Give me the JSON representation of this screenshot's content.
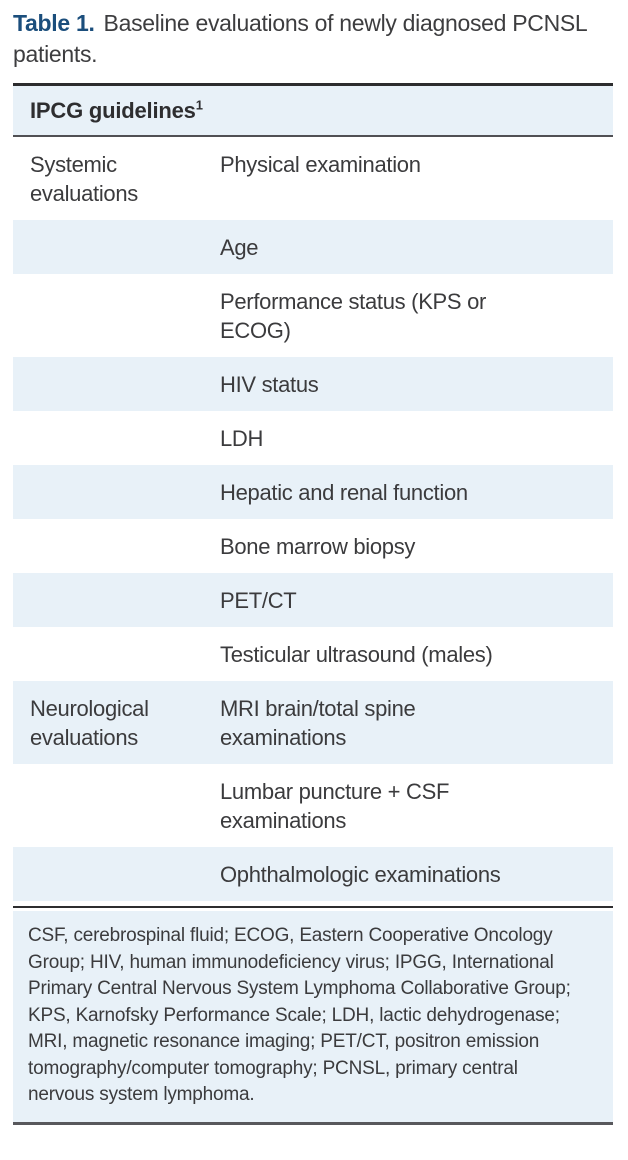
{
  "title": {
    "label": "Table 1.",
    "text": "Baseline evaluations of newly diagnosed PCNSL patients."
  },
  "table": {
    "header": {
      "text": "IPCG guidelines",
      "superscript": "1"
    },
    "columns": [
      "category",
      "evaluation"
    ],
    "rows": [
      {
        "category": "Systemic evaluations",
        "item": "Physical examination",
        "shaded": false
      },
      {
        "category": "",
        "item": "Age",
        "shaded": true
      },
      {
        "category": "",
        "item": "Performance status (KPS or ECOG)",
        "shaded": false
      },
      {
        "category": "",
        "item": "HIV status",
        "shaded": true
      },
      {
        "category": "",
        "item": "LDH",
        "shaded": false
      },
      {
        "category": "",
        "item": "Hepatic and renal function",
        "shaded": true
      },
      {
        "category": "",
        "item": "Bone marrow biopsy",
        "shaded": false
      },
      {
        "category": "",
        "item": "PET/CT",
        "shaded": true
      },
      {
        "category": "",
        "item": "Testicular ultrasound (males)",
        "shaded": false
      },
      {
        "category": "Neurological evaluations",
        "item": "MRI brain/total spine examinations",
        "shaded": true
      },
      {
        "category": "",
        "item": "Lumbar puncture + CSF examinations",
        "shaded": false
      },
      {
        "category": "",
        "item": "Ophthalmologic examinations",
        "shaded": true
      }
    ],
    "footnote": "CSF, cerebrospinal fluid; ECOG, Eastern Cooperative Oncology Group; HIV, human immunodeficiency virus; IPGG, International Primary Central Nervous System Lymphoma Collaborative Group; KPS, Karnofsky Performance Scale; LDH, lactic dehydrogenase; MRI, magnetic resonance imaging; PET/CT, positron emission tomography/computer tomography; PCNSL, primary central nervous system lymphoma."
  },
  "colors": {
    "title_accent": "#1b4e7c",
    "row_shade": "#e8f1f8",
    "body_text": "#3b3b3d",
    "rule_dark": "#2c2c2e",
    "rule_gray": "#505054"
  }
}
